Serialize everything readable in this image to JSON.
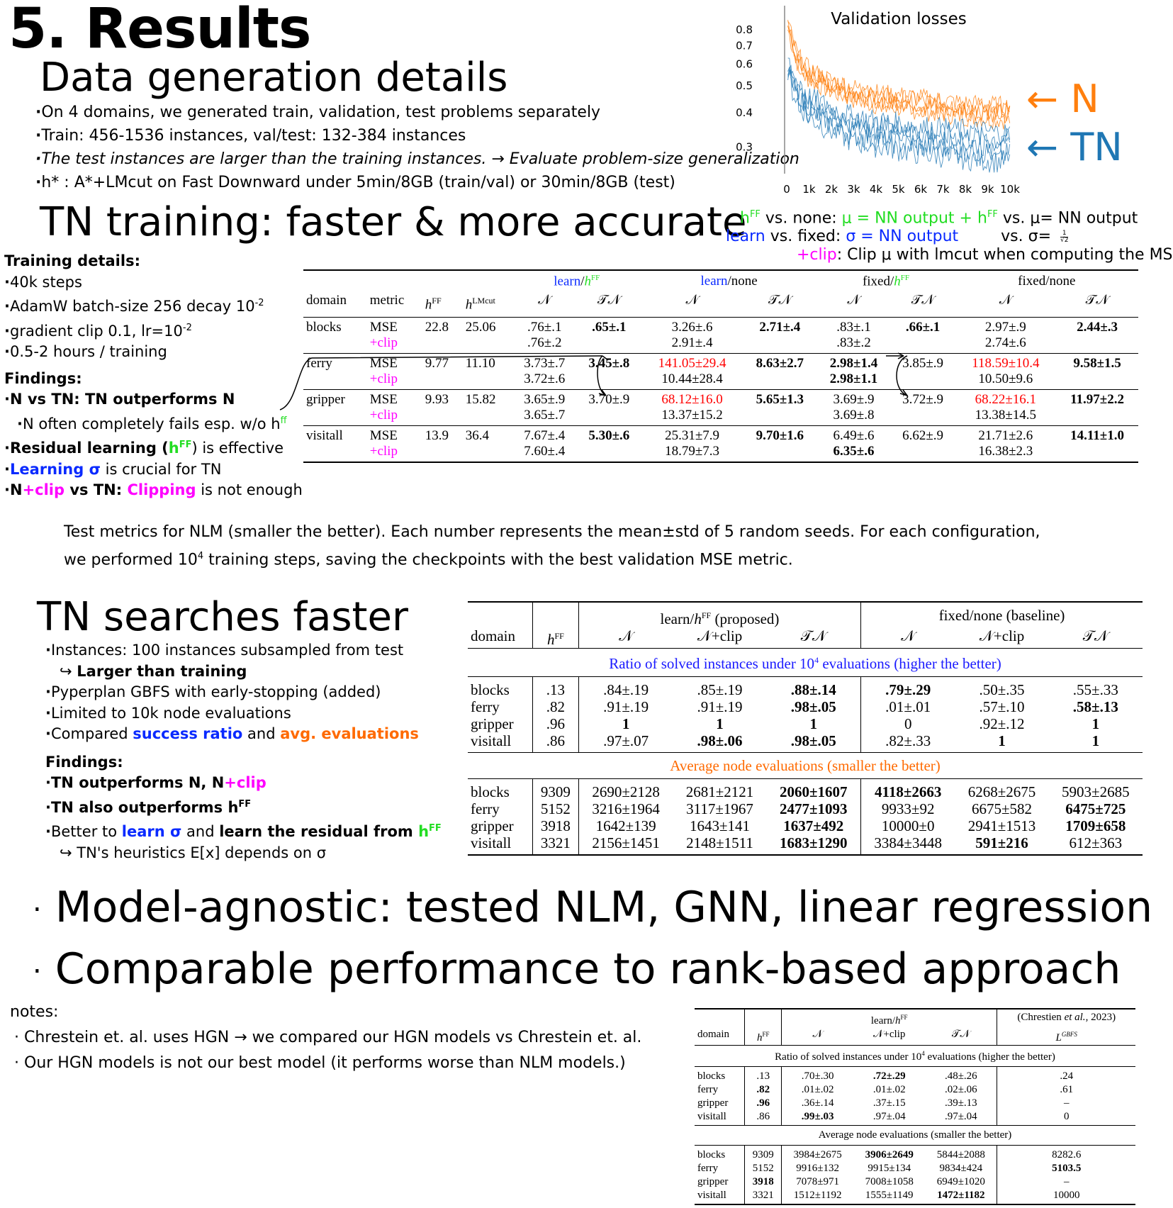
{
  "title": "5. Results",
  "data_gen": {
    "heading": "Data generation details",
    "bullets": [
      "On 4 domains, we generated train, validation, test problems separately",
      "Train: 456-1536 instances, val/test: 132-384 instances",
      "The test instances are larger than the training instances. → Evaluate problem-size generalization",
      "h* : A*+LMcut on Fast Downward under 5min/8GB (train/val) or 30min/8GB (test)"
    ]
  },
  "chart_data": {
    "type": "line",
    "title": "Validation losses",
    "xlabel": "",
    "ylabel": "",
    "x_ticks": [
      "0",
      "1k",
      "2k",
      "3k",
      "4k",
      "5k",
      "6k",
      "7k",
      "8k",
      "9k",
      "10k"
    ],
    "y_ticks": [
      "0.3",
      "0.4",
      "0.5",
      "0.6",
      "0.7",
      "0.8"
    ],
    "yscale": "log",
    "ylim": [
      0.24,
      0.9
    ],
    "xlim": [
      0,
      10000
    ],
    "series": [
      {
        "name": "N",
        "color": "#ff7f0e",
        "x": [
          0,
          250,
          500,
          1000,
          2000,
          3000,
          4000,
          5000,
          6000,
          7000,
          8000,
          9000,
          10000
        ],
        "values": [
          0.85,
          0.72,
          0.62,
          0.55,
          0.5,
          0.47,
          0.45,
          0.44,
          0.43,
          0.42,
          0.41,
          0.405,
          0.4
        ]
      },
      {
        "name": "TN",
        "color": "#1f77b4",
        "x": [
          0,
          250,
          500,
          1000,
          2000,
          3000,
          4000,
          5000,
          6000,
          7000,
          8000,
          9000,
          10000
        ],
        "values": [
          0.6,
          0.52,
          0.47,
          0.42,
          0.38,
          0.35,
          0.34,
          0.33,
          0.32,
          0.315,
          0.31,
          0.305,
          0.3
        ]
      }
    ]
  },
  "legend_labels": {
    "n": "← N",
    "tn": "← TN"
  },
  "tn_training": {
    "heading": "TN training: faster & more accurate",
    "notes": {
      "line1_a": "h",
      "line1_a_sup": "FF",
      "line1_b": " vs. none: ",
      "line1_c": "μ = NN output + h",
      "line1_c_sup": "FF",
      "line1_d": " vs. μ= NN output",
      "line2_a": "learn",
      "line2_b": " vs. fixed: ",
      "line2_c": "σ = NN output",
      "line2_d": "vs. σ=",
      "line2_frac_num": "1",
      "line2_frac_den": "√2",
      "line3_a": "+clip",
      "line3_b": ": Clip μ with lmcut when computing the MSE."
    },
    "training_details_label": "Training details:",
    "training_details": [
      "40k steps",
      "AdamW batch-size 256 decay 10",
      "gradient clip 0.1, lr=10",
      "0.5-2 hours / training"
    ],
    "decay_exp": "-2",
    "lr_exp": "-2",
    "findings_label": "Findings:",
    "findings": {
      "f1": "N vs TN: TN outperforms N",
      "f1_sub": "N often completely fails esp. w/o h",
      "f1_sub_sup": "ff",
      "f2_a": "Residual learning (",
      "f2_h": "h",
      "f2_sup": "FF",
      "f2_b": ") is effective",
      "f3_a": "Learning σ",
      "f3_b": " is crucial for TN",
      "f4_a": "N",
      "f4_b": "+clip",
      "f4_c": " vs TN: ",
      "f4_d": "Clipping",
      "f4_e": " is not enough"
    }
  },
  "table1": {
    "group_headers": [
      "learn/",
      "learn/none",
      "fixed/",
      "fixed/none"
    ],
    "hff_sup": "FF",
    "h": "h",
    "col_headers": [
      "domain",
      "metric",
      "hFF",
      "hLMcut",
      "𝒩",
      "𝒯𝒩",
      "𝒩",
      "𝒯𝒩",
      "𝒩",
      "𝒯𝒩",
      "𝒩",
      "𝒯𝒩"
    ],
    "lmcut_sup": "LMcut",
    "rows": [
      {
        "domain": "blocks",
        "m1": "MSE",
        "m2": "+clip",
        "hff": "22.8",
        "hlm": "25.06",
        "a": [
          ".76±.1",
          ".76±.2"
        ],
        "b": [
          ".65±.1",
          ""
        ],
        "c": [
          "3.26±.6",
          "2.91±.4"
        ],
        "d": [
          "2.71±.4",
          ""
        ],
        "e": [
          ".83±.1",
          ".83±.2"
        ],
        "f": [
          ".66±.1",
          ""
        ],
        "g": [
          "2.97±.9",
          "2.74±.6"
        ],
        "h": [
          "2.44±.3",
          ""
        ]
      },
      {
        "domain": "ferry",
        "m1": "MSE",
        "m2": "+clip",
        "hff": "9.77",
        "hlm": "11.10",
        "a": [
          "3.73±.7",
          "3.72±.6"
        ],
        "b": [
          "3.45±.8",
          ""
        ],
        "c": [
          "141.05±29.4",
          "10.44±28.4"
        ],
        "d": [
          "8.63±2.7",
          ""
        ],
        "e": [
          "2.98±1.4",
          "2.98±1.1"
        ],
        "f": [
          "3.85±.9",
          ""
        ],
        "g": [
          "118.59±10.4",
          "10.50±9.6"
        ],
        "h": [
          "9.58±1.5",
          ""
        ]
      },
      {
        "domain": "gripper",
        "m1": "MSE",
        "m2": "+clip",
        "hff": "9.93",
        "hlm": "15.82",
        "a": [
          "3.65±.9",
          "3.65±.7"
        ],
        "b": [
          "3.70±.9",
          ""
        ],
        "c": [
          "68.12±16.0",
          "13.37±15.2"
        ],
        "d": [
          "5.65±1.3",
          ""
        ],
        "e": [
          "3.69±.9",
          "3.69±.8"
        ],
        "f": [
          "3.72±.9",
          ""
        ],
        "g": [
          "68.22±16.1",
          "13.38±14.5"
        ],
        "h": [
          "11.97±2.2",
          ""
        ]
      },
      {
        "domain": "visitall",
        "m1": "MSE",
        "m2": "+clip",
        "hff": "13.9",
        "hlm": "36.4",
        "a": [
          "7.67±.4",
          "7.60±.4"
        ],
        "b": [
          "5.30±.6",
          ""
        ],
        "c": [
          "25.31±7.9",
          "18.79±7.3"
        ],
        "d": [
          "9.70±1.6",
          ""
        ],
        "e": [
          "6.49±.6",
          "6.35±.6"
        ],
        "f": [
          "6.62±.9",
          ""
        ],
        "g": [
          "21.71±2.6",
          "16.38±2.3"
        ],
        "h": [
          "14.11±1.0",
          ""
        ]
      }
    ],
    "caption_l1": "Test metrics for NLM (smaller the better). Each number represents the mean±std of 5 random seeds. For each configuration,",
    "caption_l2a": "we performed 10",
    "caption_l2_sup": "4",
    "caption_l2b": " training steps, saving the checkpoints with the best validation MSE metric."
  },
  "tn_search": {
    "heading": "TN searches faster",
    "bullets": {
      "b1": "Instances: 100 instances subsampled from test",
      "b1_sub_arrow": "↪",
      "b1_sub": "Larger than training",
      "b2": "Pyperplan GBFS with early-stopping (added)",
      "b3": "Limited to 10k node evaluations",
      "b4_a": "Compared ",
      "b4_b": "success ratio",
      "b4_c": " and ",
      "b4_d": "avg. evaluations"
    },
    "findings_label": "Findings:",
    "findings": {
      "f1_a": "TN outperforms N, N",
      "f1_b": "+clip",
      "f2_a": "TN also outperforms h",
      "f2_sup": "FF",
      "f3_a": "Better to ",
      "f3_b": "learn σ",
      "f3_c": " and ",
      "f3_d": "learn the residual from ",
      "f3_e": "h",
      "f3_sup": "FF",
      "f3_sub": "↪ TN's heuristics E[x] depends on σ"
    }
  },
  "table2": {
    "group1": "learn/",
    "group1_tail": " (proposed)",
    "group2": "fixed/none (baseline)",
    "cols": [
      "domain",
      "hFF",
      "𝒩",
      "𝒩+clip",
      "𝒯𝒩",
      "𝒩",
      "𝒩+clip",
      "𝒯𝒩"
    ],
    "section1_a": "Ratio of solved instances under 10",
    "section1_sup": "4",
    "section1_b": " evaluations (higher the better)",
    "section2": "Average node evaluations (smaller the better)",
    "ratio_rows": [
      [
        "blocks",
        ".13",
        ".84±.19",
        ".85±.19",
        ".88±.14",
        ".79±.29",
        ".50±.35",
        ".55±.33"
      ],
      [
        "ferry",
        ".82",
        ".91±.19",
        ".91±.19",
        ".98±.05",
        ".01±.01",
        ".57±.10",
        ".58±.13"
      ],
      [
        "gripper",
        ".96",
        "1",
        "1",
        "1",
        "0",
        ".92±.12",
        "1"
      ],
      [
        "visitall",
        ".86",
        ".97±.07",
        ".98±.06",
        ".98±.05",
        ".82±.33",
        "1",
        "1"
      ]
    ],
    "eval_rows": [
      [
        "blocks",
        "9309",
        "2690±2128",
        "2681±2121",
        "2060±1607",
        "4118±2663",
        "6268±2675",
        "5903±2685"
      ],
      [
        "ferry",
        "5152",
        "3216±1964",
        "3117±1967",
        "2477±1093",
        "9933±92",
        "6675±582",
        "6475±725"
      ],
      [
        "gripper",
        "3918",
        "1642±139",
        "1643±141",
        "1637±492",
        "10000±0",
        "2941±1513",
        "1709±658"
      ],
      [
        "visitall",
        "3321",
        "2156±1451",
        "2148±1511",
        "1683±1290",
        "3384±3448",
        "591±216",
        "612±363"
      ]
    ]
  },
  "big_bullets": [
    "Model-agnostic: tested NLM, GNN, linear regression",
    "Comparable performance to rank-based approach"
  ],
  "notes": {
    "label": "notes:",
    "items": [
      "Chrestein et. al. uses HGN → we compared our HGN models vs Chrestein et. al.",
      "Our HGN models is not our best model (it performs worse than NLM models.)"
    ]
  },
  "table3": {
    "group1": "learn/",
    "group2_a": "(Chrestien ",
    "group2_i": "et al.",
    "group2_b": ", 2023)",
    "lgbfs": "L",
    "lgbfs_sup": "GBFS",
    "cols": [
      "domain",
      "hFF",
      "𝒩",
      "𝒩+clip",
      "𝒯𝒩"
    ],
    "section1_a": "Ratio of solved instances under 10",
    "section1_sup": "4",
    "section1_b": " evaluations (higher the better)",
    "section2": "Average node evaluations (smaller the better)",
    "ratio_rows": [
      [
        "blocks",
        ".13",
        ".70±.30",
        ".72±.29",
        ".48±.26",
        ".24"
      ],
      [
        "ferry",
        ".82",
        ".01±.02",
        ".01±.02",
        ".02±.06",
        ".61"
      ],
      [
        "gripper",
        ".96",
        ".36±.14",
        ".37±.15",
        ".39±.13",
        "–"
      ],
      [
        "visitall",
        ".86",
        ".99±.03",
        ".97±.04",
        ".97±.04",
        "0"
      ]
    ],
    "eval_rows": [
      [
        "blocks",
        "9309",
        "3984±2675",
        "3906±2649",
        "5844±2088",
        "8282.6"
      ],
      [
        "ferry",
        "5152",
        "9916±132",
        "9915±134",
        "9834±424",
        "5103.5"
      ],
      [
        "gripper",
        "3918",
        "7078±971",
        "7008±1058",
        "6949±1020",
        "–"
      ],
      [
        "visitall",
        "3321",
        "1512±1192",
        "1555±1149",
        "1472±1182",
        "10000"
      ]
    ]
  }
}
